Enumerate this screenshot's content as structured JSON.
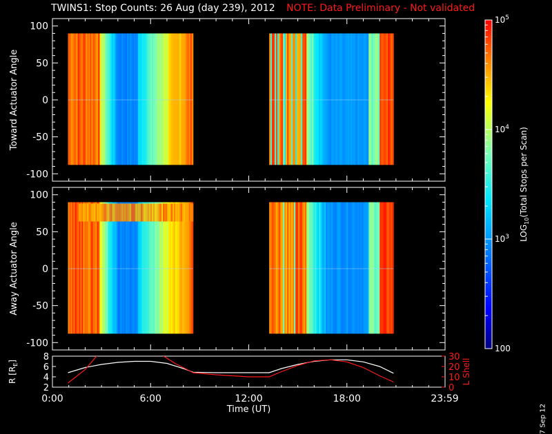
{
  "title": {
    "main": "TWINS1: Stop Counts: 26 Aug (day 239), 2012",
    "note": "NOTE: Data Preliminary - Not validated"
  },
  "footer_date": "7 Sep 12",
  "colors": {
    "background": "#000000",
    "axes": "#ffffff",
    "note": "#ff1a1a",
    "orbit_r": "#ffffff",
    "orbit_l": "#ff1a1a"
  },
  "chart_data": [
    {
      "type": "heatmap",
      "panel": "top",
      "ylabel": "Toward Actuator Angle",
      "xlim": [
        0,
        24
      ],
      "ylim": [
        -110,
        110
      ],
      "yticks": [
        100,
        50,
        0,
        -50,
        -100
      ],
      "data_blocks": [
        {
          "x_start": 0.95,
          "x_end": 8.6,
          "y_start": -88,
          "y_end": 90
        },
        {
          "x_start": 13.25,
          "x_end": 20.85,
          "y_start": -88,
          "y_end": 90
        }
      ]
    },
    {
      "type": "heatmap",
      "panel": "middle",
      "ylabel": "Away Actuator Angle",
      "xlim": [
        0,
        24
      ],
      "ylim": [
        -110,
        110
      ],
      "yticks": [
        100,
        50,
        0,
        -50,
        -100
      ],
      "data_blocks": [
        {
          "x_start": 0.95,
          "x_end": 8.6,
          "y_start": -88,
          "y_end": 90
        },
        {
          "x_start": 13.25,
          "x_end": 20.85,
          "y_start": -88,
          "y_end": 90
        }
      ]
    },
    {
      "type": "line",
      "panel": "bottom",
      "xlabel": "Time (UT)",
      "xticks": [
        "0:00",
        "6:00",
        "12:00",
        "18:00",
        "23:59"
      ],
      "xtick_values": [
        0,
        6,
        12,
        18,
        23.98
      ],
      "ylabel_left": "R [R",
      "ylabel_left_sub": "E",
      "ylabel_left_close": "]",
      "ylabel_right": "L Shell",
      "ylim_left": [
        2,
        8
      ],
      "yticks_left": [
        8,
        6,
        4,
        2
      ],
      "ylim_right": [
        0,
        30
      ],
      "yticks_right": [
        30,
        20,
        10,
        0
      ],
      "series": [
        {
          "axis": "left",
          "color": "#ffffff",
          "x": [
            0.95,
            2,
            3,
            4,
            5,
            6,
            7,
            8,
            8.6,
            10,
            12,
            13.25,
            14,
            15,
            16,
            17,
            18,
            19,
            20,
            20.85
          ],
          "y": [
            4.8,
            5.8,
            6.4,
            6.8,
            7.0,
            7.0,
            6.6,
            5.6,
            4.9,
            4.8,
            4.8,
            4.8,
            5.6,
            6.4,
            7.0,
            7.3,
            7.3,
            6.9,
            6.0,
            4.7
          ]
        },
        {
          "axis": "right",
          "x": [
            0.95,
            2,
            2.7,
            3.2,
            4,
            5,
            6,
            6.8,
            7.5,
            8.6,
            10,
            12,
            13.25,
            14,
            15,
            16,
            17,
            18,
            19,
            20,
            20.85
          ],
          "y": [
            4,
            17,
            30,
            35,
            35,
            35,
            35,
            30,
            23,
            14,
            12,
            10,
            10,
            15,
            21,
            25.5,
            26.5,
            24.5,
            19,
            11,
            5
          ]
        }
      ]
    }
  ],
  "colorbar": {
    "label": "LOG",
    "label_sub": "10",
    "label_rest": "(Total Stops per Scan)",
    "tick_labels": [
      "10^5",
      "10^4",
      "10^3",
      "100"
    ],
    "tick_values": [
      100000,
      10000,
      1000,
      100
    ],
    "log_range": [
      2,
      5
    ]
  }
}
